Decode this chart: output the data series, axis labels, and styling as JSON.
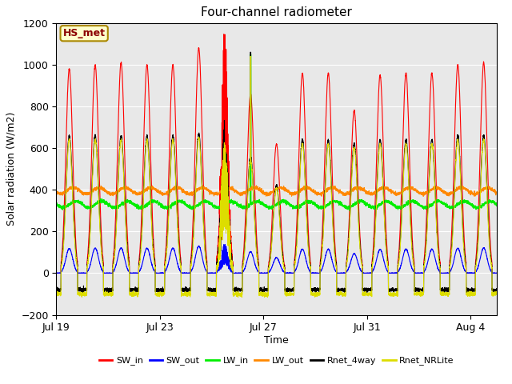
{
  "title": "Four-channel radiometer",
  "xlabel": "Time",
  "ylabel": "Solar radiation (W/m2)",
  "ylim": [
    -200,
    1200
  ],
  "yticks": [
    -200,
    0,
    200,
    400,
    600,
    800,
    1000,
    1200
  ],
  "plot_bg": "#e8e8e8",
  "annotation_label": "HS_met",
  "annotation_color": "#8b0000",
  "annotation_bg": "#ffffcc",
  "legend_entries": [
    "SW_in",
    "SW_out",
    "LW_in",
    "LW_out",
    "Rnet_4way",
    "Rnet_NRLite"
  ],
  "line_colors": [
    "#ff0000",
    "#0000ff",
    "#00ee00",
    "#ff8800",
    "#000000",
    "#dddd00"
  ],
  "n_days": 17,
  "xtick_labels": [
    "Jul 19",
    "Jul 23",
    "Jul 27",
    "Jul 31",
    "Aug 4"
  ],
  "xtick_positions": [
    0,
    4,
    8,
    12,
    16
  ]
}
